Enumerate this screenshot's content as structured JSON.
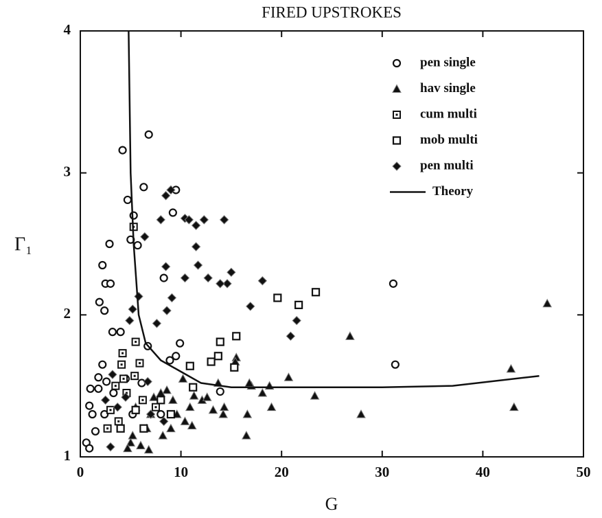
{
  "chart_data": {
    "type": "scatter",
    "title": "FIRED UPSTROKES",
    "xlabel": "G",
    "ylabel": "Γ₁",
    "xlim": [
      0,
      50
    ],
    "ylim": [
      1,
      4
    ],
    "xticks": [
      0,
      10,
      20,
      30,
      40,
      50
    ],
    "yticks": [
      1,
      2,
      3,
      4
    ],
    "legend": "upper right",
    "series": [
      {
        "name": "pen single",
        "marker": "circle",
        "color": "#111111",
        "x": [
          4.2,
          6.8,
          6.3,
          9.5,
          4.7,
          5.3,
          9.2,
          2.9,
          5.0,
          5.7,
          2.2,
          2.5,
          3.0,
          1.9,
          2.4,
          3.2,
          4.0,
          8.3,
          31.1,
          31.3,
          9.9,
          8.9,
          9.5,
          6.7,
          2.2,
          1.8,
          2.6,
          1.0,
          1.8,
          13.9,
          0.9,
          1.2,
          0.6,
          0.9,
          1.5,
          2.4,
          6.1,
          5.2,
          3.3,
          8.0,
          4.5
        ],
        "values": [
          3.16,
          3.27,
          2.9,
          2.88,
          2.81,
          2.7,
          2.72,
          2.5,
          2.53,
          2.49,
          2.35,
          2.22,
          2.22,
          2.09,
          2.03,
          1.88,
          1.88,
          2.26,
          2.22,
          1.65,
          1.8,
          1.68,
          1.71,
          1.78,
          1.65,
          1.56,
          1.53,
          1.48,
          1.48,
          1.46,
          1.36,
          1.3,
          1.1,
          1.06,
          1.18,
          1.3,
          1.52,
          1.3,
          1.45,
          1.3,
          1.55
        ]
      },
      {
        "name": "hav single",
        "marker": "triangle",
        "color": "#111111",
        "x": [
          46.4,
          26.8,
          42.8,
          43.1,
          27.9,
          23.3,
          20.7,
          18.8,
          18.1,
          19.0,
          16.6,
          16.5,
          17.0,
          16.8,
          15.5,
          15.4,
          13.7,
          14.3,
          14.2,
          13.2,
          12.1,
          10.2,
          11.3,
          10.9,
          11.1,
          10.4,
          9.2,
          8.6,
          8.0,
          7.3,
          7.0,
          6.6,
          6.8,
          5.0,
          5.2,
          5.5,
          9.6,
          9.0,
          8.2,
          12.6,
          4.7,
          6.0
        ],
        "values": [
          2.08,
          1.85,
          1.62,
          1.35,
          1.3,
          1.43,
          1.56,
          1.5,
          1.45,
          1.35,
          1.3,
          1.15,
          1.5,
          1.52,
          1.7,
          1.67,
          1.52,
          1.35,
          1.3,
          1.33,
          1.4,
          1.55,
          1.43,
          1.35,
          1.22,
          1.25,
          1.4,
          1.47,
          1.45,
          1.42,
          1.3,
          1.2,
          1.05,
          1.1,
          1.15,
          1.35,
          1.3,
          1.2,
          1.15,
          1.42,
          1.06,
          1.08
        ]
      },
      {
        "name": "cum multi",
        "marker": "dotted-square",
        "color": "#111111",
        "x": [
          5.3,
          5.5,
          4.2,
          4.1,
          5.9,
          4.3,
          3.5,
          3.0,
          3.8,
          4.6,
          5.4,
          6.2,
          2.7,
          7.5
        ],
        "values": [
          2.62,
          1.81,
          1.73,
          1.65,
          1.66,
          1.55,
          1.5,
          1.33,
          1.25,
          1.45,
          1.57,
          1.4,
          1.2,
          1.35
        ]
      },
      {
        "name": "mob multi",
        "marker": "square",
        "color": "#111111",
        "x": [
          23.4,
          21.7,
          19.6,
          15.5,
          13.9,
          13.7,
          13.0,
          15.3,
          10.9,
          11.2,
          8.0,
          6.3,
          5.5,
          9.0,
          4.0
        ],
        "values": [
          2.16,
          2.07,
          2.12,
          1.85,
          1.81,
          1.71,
          1.67,
          1.63,
          1.64,
          1.49,
          1.4,
          1.2,
          1.33,
          1.3,
          1.2
        ]
      },
      {
        "name": "pen multi",
        "marker": "diamond",
        "color": "#111111",
        "x": [
          8.5,
          9.0,
          6.4,
          8.0,
          10.4,
          10.8,
          12.3,
          14.3,
          11.5,
          11.5,
          11.7,
          8.5,
          15.0,
          12.7,
          14.6,
          13.9,
          10.4,
          18.1,
          9.1,
          5.8,
          5.2,
          16.9,
          8.6,
          4.9,
          7.6,
          21.5,
          20.9,
          6.7,
          3.0,
          2.5,
          3.7,
          4.5,
          3.2,
          8.3,
          7.0
        ],
        "values": [
          2.84,
          2.88,
          2.55,
          2.67,
          2.68,
          2.67,
          2.67,
          2.67,
          2.63,
          2.48,
          2.35,
          2.34,
          2.3,
          2.26,
          2.22,
          2.22,
          2.26,
          2.24,
          2.12,
          2.13,
          2.04,
          2.06,
          2.03,
          1.96,
          1.94,
          1.96,
          1.85,
          1.53,
          1.07,
          1.4,
          1.35,
          1.42,
          1.58,
          1.25,
          1.3
        ]
      },
      {
        "name": "Theory",
        "marker": "line",
        "color": "#111111",
        "x": [
          4.8,
          5.0,
          5.3,
          5.8,
          6.5,
          8.0,
          10.0,
          12.0,
          15.0,
          20.0,
          30.0,
          37.0,
          45.6
        ],
        "values": [
          4.0,
          3.0,
          2.5,
          2.0,
          1.8,
          1.68,
          1.6,
          1.52,
          1.49,
          1.49,
          1.49,
          1.5,
          1.57
        ]
      }
    ]
  }
}
